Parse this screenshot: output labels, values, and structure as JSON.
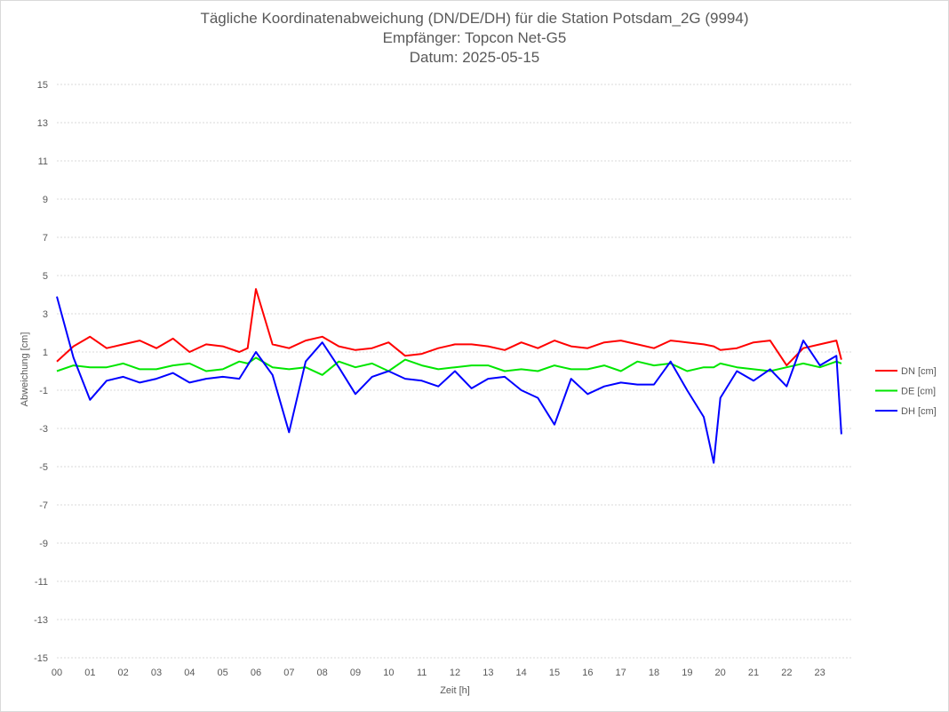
{
  "chart_data": {
    "type": "line",
    "title": "Tägliche Koordinatenabweichung (DN/DE/DH) für die Station Potsdam_2G (9994)",
    "subtitle": "Empfänger: Topcon Net-G5",
    "subtitle2": "Datum: 2025-05-15",
    "xlabel": "Zeit [h]",
    "ylabel": "Abweichung [cm]",
    "xlim": [
      0,
      24
    ],
    "ylim": [
      -15,
      15
    ],
    "y_ticks": [
      "15",
      "13",
      "11",
      "9",
      "7",
      "5",
      "3",
      "1",
      "-1",
      "-3",
      "-5",
      "-7",
      "-9",
      "-11",
      "-13",
      "-15"
    ],
    "x_ticks": [
      "00",
      "01",
      "02",
      "03",
      "04",
      "05",
      "06",
      "07",
      "08",
      "09",
      "10",
      "11",
      "12",
      "13",
      "14",
      "15",
      "16",
      "17",
      "18",
      "19",
      "20",
      "21",
      "22",
      "23"
    ],
    "grid": "horizontal dotted",
    "legend_position": "right",
    "x": [
      0.0,
      0.5,
      1.0,
      1.5,
      2.0,
      2.5,
      3.0,
      3.5,
      4.0,
      4.5,
      5.0,
      5.5,
      5.75,
      6.0,
      6.5,
      7.0,
      7.5,
      8.0,
      8.5,
      9.0,
      9.5,
      10.0,
      10.5,
      11.0,
      11.5,
      12.0,
      12.5,
      13.0,
      13.5,
      14.0,
      14.5,
      15.0,
      15.5,
      16.0,
      16.5,
      17.0,
      17.5,
      18.0,
      18.5,
      19.0,
      19.5,
      19.8,
      20.0,
      20.5,
      21.0,
      21.5,
      22.0,
      22.5,
      23.0,
      23.5,
      23.65
    ],
    "series": [
      {
        "name": "DN [cm]",
        "color": "#ff0000",
        "values": [
          0.5,
          1.3,
          1.8,
          1.2,
          1.4,
          1.6,
          1.2,
          1.7,
          1.0,
          1.4,
          1.3,
          1.0,
          1.2,
          4.3,
          1.4,
          1.2,
          1.6,
          1.8,
          1.3,
          1.1,
          1.2,
          1.5,
          0.8,
          0.9,
          1.2,
          1.4,
          1.4,
          1.3,
          1.1,
          1.5,
          1.2,
          1.6,
          1.3,
          1.2,
          1.5,
          1.6,
          1.4,
          1.2,
          1.6,
          1.5,
          1.4,
          1.3,
          1.1,
          1.2,
          1.5,
          1.6,
          0.3,
          1.2,
          1.4,
          1.6,
          0.6
        ]
      },
      {
        "name": "DE [cm]",
        "color": "#00e600",
        "values": [
          0.0,
          0.3,
          0.2,
          0.2,
          0.4,
          0.1,
          0.1,
          0.3,
          0.4,
          0.0,
          0.1,
          0.5,
          0.4,
          0.7,
          0.2,
          0.1,
          0.2,
          -0.2,
          0.5,
          0.2,
          0.4,
          0.0,
          0.6,
          0.3,
          0.1,
          0.2,
          0.3,
          0.3,
          0.0,
          0.1,
          0.0,
          0.3,
          0.1,
          0.1,
          0.3,
          0.0,
          0.5,
          0.3,
          0.4,
          0.0,
          0.2,
          0.2,
          0.4,
          0.2,
          0.1,
          0.0,
          0.2,
          0.4,
          0.2,
          0.5,
          0.4
        ]
      },
      {
        "name": "DH [cm]",
        "color": "#0000ff",
        "values": [
          3.9,
          0.7,
          -1.5,
          -0.5,
          -0.3,
          -0.6,
          -0.4,
          -0.1,
          -0.6,
          -0.4,
          -0.3,
          -0.4,
          0.3,
          1.0,
          -0.2,
          -3.2,
          0.5,
          1.5,
          0.2,
          -1.2,
          -0.3,
          0.0,
          -0.4,
          -0.5,
          -0.8,
          0.0,
          -0.9,
          -0.4,
          -0.3,
          -1.0,
          -1.4,
          -2.8,
          -0.4,
          -1.2,
          -0.8,
          -0.6,
          -0.7,
          -0.7,
          0.5,
          -1.0,
          -2.4,
          -4.8,
          -1.4,
          0.0,
          -0.5,
          0.1,
          -0.8,
          1.6,
          0.3,
          0.8,
          -3.3
        ]
      }
    ]
  }
}
